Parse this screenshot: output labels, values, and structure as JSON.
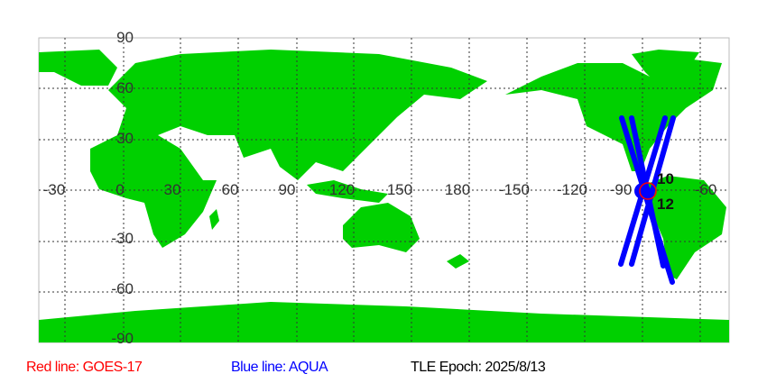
{
  "map": {
    "lon_labels": [
      "-30",
      "0",
      "30",
      "60",
      "90",
      "120",
      "150",
      "180",
      "-150",
      "-120",
      "-90",
      "-60"
    ],
    "lat_labels": [
      "90",
      "60",
      "30",
      "0",
      "-30",
      "-60",
      "-90"
    ],
    "pass_labels": [
      "10",
      "12"
    ],
    "colors": {
      "land": "#00d000",
      "ocean": "#ffffff",
      "aqua_track": "#0000ff",
      "goes_track": "#ff0000",
      "grid": "#333333"
    }
  },
  "legend": {
    "red": "Red line: GOES-17",
    "blue": "Blue line: AQUA",
    "epoch": "TLE Epoch: 2025/8/13"
  }
}
